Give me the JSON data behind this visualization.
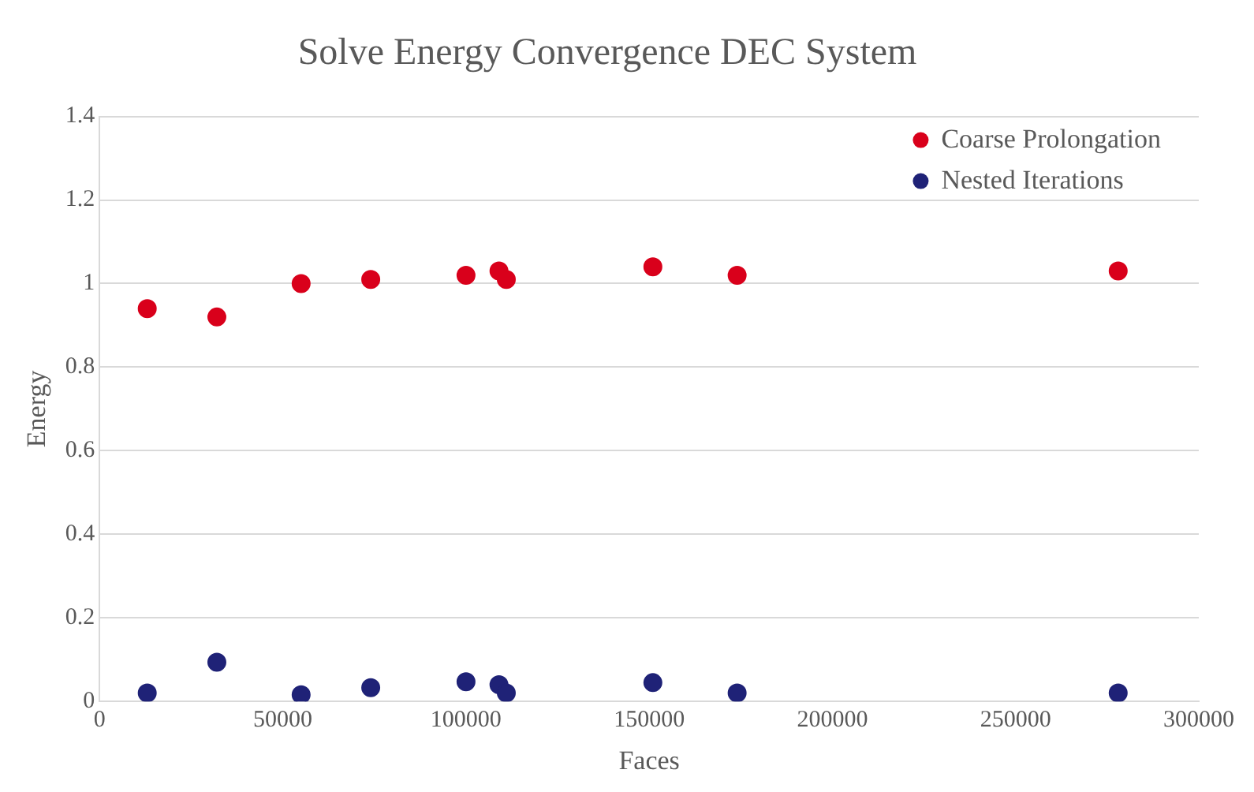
{
  "chart_data": {
    "type": "scatter",
    "title": "Solve Energy Convergence DEC System",
    "xlabel": "Faces",
    "ylabel": "Energy",
    "x": [
      13000,
      32000,
      55000,
      74000,
      100000,
      109000,
      111000,
      151000,
      174000,
      278000
    ],
    "series": [
      {
        "name": "Coarse Prolongation",
        "color": "#d9001b",
        "values": [
          0.94,
          0.92,
          1.0,
          1.01,
          1.02,
          1.03,
          1.01,
          1.04,
          1.02,
          1.03
        ]
      },
      {
        "name": "Nested Iterations",
        "color": "#1f2277",
        "values": [
          0.02,
          0.094,
          0.016,
          0.033,
          0.047,
          0.04,
          0.02,
          0.045,
          0.02,
          0.02
        ]
      }
    ],
    "xlim": [
      0,
      300000
    ],
    "xticks": [
      0,
      50000,
      100000,
      150000,
      200000,
      250000,
      300000
    ],
    "ylim": [
      0,
      1.4
    ],
    "yticks": [
      0,
      0.2,
      0.4,
      0.6,
      0.8,
      1,
      1.2,
      1.4
    ],
    "grid": "y",
    "legend": "top right",
    "marker": "circle"
  }
}
